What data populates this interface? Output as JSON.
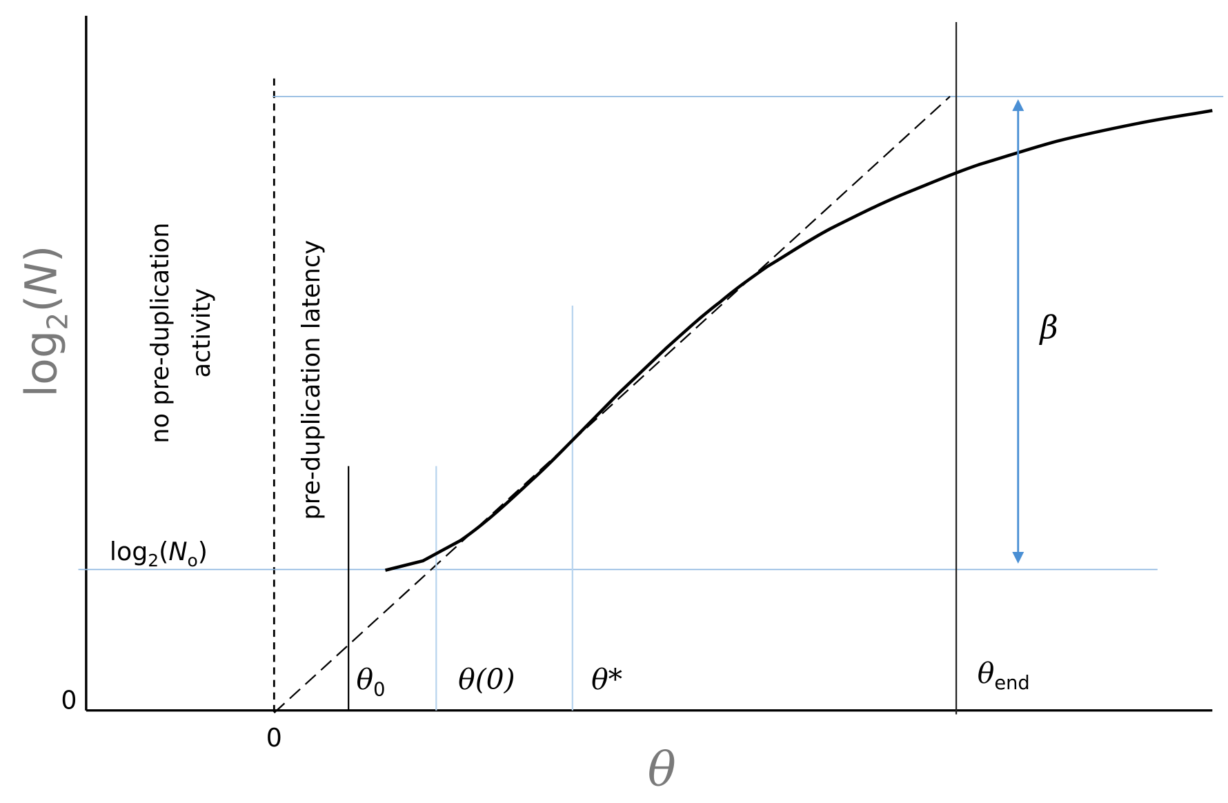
{
  "y_axis": {
    "label": [
      "log",
      "2",
      "(",
      "N",
      ")"
    ],
    "origin": "0"
  },
  "x_axis": {
    "label": "θ",
    "origin": "0"
  },
  "regions": {
    "left": [
      "no  pre-duplication",
      "activity"
    ],
    "right": "pre-duplication latency"
  },
  "level_label": [
    "log",
    "2",
    "(",
    "N",
    "o",
    ")"
  ],
  "markers": {
    "theta0": [
      "θ",
      "0"
    ],
    "theta_zero": [
      "θ",
      "(0)"
    ],
    "theta_star": "θ*",
    "theta_end": [
      "θ",
      "end"
    ]
  },
  "arrow_label": "β"
}
